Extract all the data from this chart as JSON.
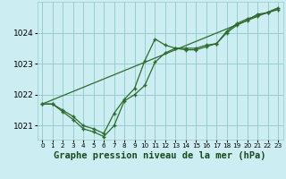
{
  "background_color": "#cceef2",
  "grid_color": "#99cccc",
  "line_color": "#2d6b2d",
  "marker_color": "#2d6b2d",
  "xlabel": "Graphe pression niveau de la mer (hPa)",
  "xlabel_fontsize": 7.5,
  "xlim": [
    -0.5,
    23.5
  ],
  "ylim": [
    1020.55,
    1025.0
  ],
  "yticks": [
    1021,
    1022,
    1023,
    1024
  ],
  "xticks": [
    0,
    1,
    2,
    3,
    4,
    5,
    6,
    7,
    8,
    9,
    10,
    11,
    12,
    13,
    14,
    15,
    16,
    17,
    18,
    19,
    20,
    21,
    22,
    23
  ],
  "series1_x": [
    0,
    1,
    2,
    3,
    4,
    5,
    6,
    7,
    8,
    9,
    10,
    11,
    12,
    13,
    14,
    15,
    16,
    17,
    18,
    19,
    20,
    21,
    22,
    23
  ],
  "series1_y": [
    1021.7,
    1021.7,
    1021.5,
    1021.3,
    1021.0,
    1020.9,
    1020.75,
    1021.4,
    1021.85,
    1022.2,
    1023.1,
    1023.8,
    1023.6,
    1023.5,
    1023.5,
    1023.5,
    1023.6,
    1023.65,
    1024.05,
    1024.3,
    1024.45,
    1024.55,
    1024.65,
    1024.8
  ],
  "series2_x": [
    0,
    1,
    2,
    3,
    4,
    5,
    6,
    7,
    8,
    9,
    10,
    11,
    12,
    13,
    14,
    15,
    16,
    17,
    18,
    19,
    20,
    21,
    22,
    23
  ],
  "series2_y": [
    1021.7,
    1021.7,
    1021.45,
    1021.2,
    1020.9,
    1020.8,
    1020.65,
    1021.0,
    1021.8,
    1022.0,
    1022.3,
    1023.05,
    1023.35,
    1023.5,
    1023.45,
    1023.45,
    1023.55,
    1023.65,
    1024.0,
    1024.25,
    1024.4,
    1024.6,
    1024.65,
    1024.75
  ],
  "series3_x": [
    0,
    23
  ],
  "series3_y": [
    1021.7,
    1024.8
  ]
}
